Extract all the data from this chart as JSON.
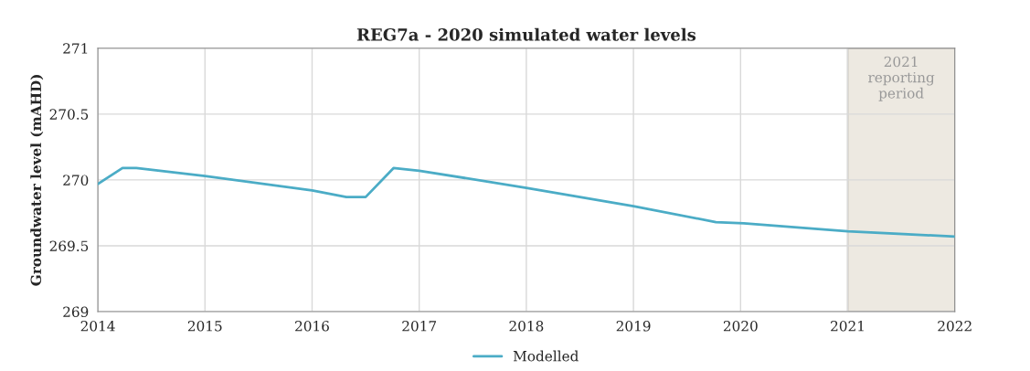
{
  "chart_data": {
    "type": "line",
    "title": "REG7a - 2020 simulated water levels",
    "ylabel": "Groundwater level (mAHD)",
    "series": [
      {
        "name": "Modelled",
        "color": "#4bacc6",
        "x": [
          2014.0,
          2014.23,
          2014.36,
          2015.0,
          2016.0,
          2016.32,
          2016.5,
          2016.76,
          2017.0,
          2018.0,
          2019.0,
          2019.77,
          2020.03,
          2021.0,
          2022.0
        ],
        "values": [
          269.97,
          270.09,
          270.09,
          270.03,
          269.92,
          269.87,
          269.87,
          270.09,
          270.07,
          269.94,
          269.8,
          269.68,
          269.67,
          269.61,
          269.57
        ]
      }
    ],
    "xlim": [
      2014,
      2022
    ],
    "xticks": [
      2014,
      2015,
      2016,
      2017,
      2018,
      2019,
      2020,
      2021,
      2022
    ],
    "ylim": [
      269,
      271
    ],
    "yticks": [
      269,
      269.5,
      270,
      270.5,
      271
    ],
    "bands": [
      {
        "axis": "x",
        "from": 2021,
        "to": 2022,
        "label": "2021\nreporting\nperiod",
        "color": "#ede9e1"
      }
    ],
    "grid": true,
    "legend": "bottom"
  }
}
